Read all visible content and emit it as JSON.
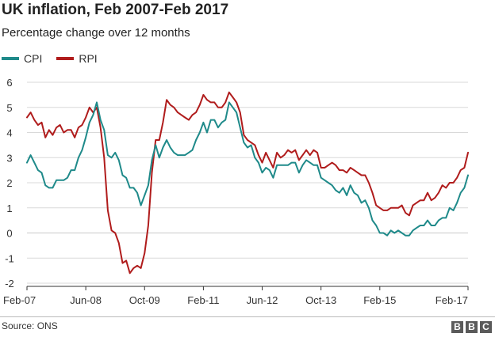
{
  "header": {
    "title": "UK inflation, Feb 2007-Feb 2017",
    "subtitle": "Percentage change over 12 months"
  },
  "footer": {
    "source": "Source: ONS",
    "logo_letters": [
      "B",
      "B",
      "C"
    ]
  },
  "colors": {
    "cpi": "#1f8a8a",
    "rpi": "#b01c1c",
    "grid": "#d9d9d9",
    "axis": "#333333"
  },
  "chart_data": {
    "type": "line",
    "title": "UK inflation, Feb 2007-Feb 2017",
    "subtitle": "Percentage change over 12 months",
    "xlabel": "",
    "ylabel": "",
    "x_start": "2007-02",
    "x_end": "2017-02",
    "ylim": [
      -2,
      6
    ],
    "yticks": [
      6,
      5,
      4,
      3,
      2,
      1,
      0,
      -1,
      -2
    ],
    "xticks": [
      {
        "label": "Feb-07",
        "date": "2007-02"
      },
      {
        "label": "Jun-08",
        "date": "2008-06"
      },
      {
        "label": "Oct-09",
        "date": "2009-10"
      },
      {
        "label": "Feb-11",
        "date": "2011-02"
      },
      {
        "label": "Jun-12",
        "date": "2012-06"
      },
      {
        "label": "Oct-13",
        "date": "2013-10"
      },
      {
        "label": "Feb-15",
        "date": "2015-02"
      },
      {
        "label": "Feb-17",
        "date": "2017-02"
      }
    ],
    "grid": true,
    "legend_position": "top-left",
    "series": [
      {
        "name": "CPI",
        "color": "#1f8a8a",
        "points": [
          [
            "2007-02",
            2.8
          ],
          [
            "2007-03",
            3.1
          ],
          [
            "2007-04",
            2.8
          ],
          [
            "2007-05",
            2.5
          ],
          [
            "2007-06",
            2.4
          ],
          [
            "2007-07",
            1.9
          ],
          [
            "2007-08",
            1.8
          ],
          [
            "2007-09",
            1.8
          ],
          [
            "2007-10",
            2.1
          ],
          [
            "2007-11",
            2.1
          ],
          [
            "2007-12",
            2.1
          ],
          [
            "2008-01",
            2.2
          ],
          [
            "2008-02",
            2.5
          ],
          [
            "2008-03",
            2.5
          ],
          [
            "2008-04",
            3.0
          ],
          [
            "2008-05",
            3.3
          ],
          [
            "2008-06",
            3.8
          ],
          [
            "2008-07",
            4.4
          ],
          [
            "2008-08",
            4.7
          ],
          [
            "2008-09",
            5.2
          ],
          [
            "2008-10",
            4.5
          ],
          [
            "2008-11",
            4.1
          ],
          [
            "2008-12",
            3.1
          ],
          [
            "2009-01",
            3.0
          ],
          [
            "2009-02",
            3.2
          ],
          [
            "2009-03",
            2.9
          ],
          [
            "2009-04",
            2.3
          ],
          [
            "2009-05",
            2.2
          ],
          [
            "2009-06",
            1.8
          ],
          [
            "2009-07",
            1.8
          ],
          [
            "2009-08",
            1.6
          ],
          [
            "2009-09",
            1.1
          ],
          [
            "2009-10",
            1.5
          ],
          [
            "2009-11",
            1.9
          ],
          [
            "2009-12",
            2.9
          ],
          [
            "2010-01",
            3.5
          ],
          [
            "2010-02",
            3.0
          ],
          [
            "2010-03",
            3.4
          ],
          [
            "2010-04",
            3.7
          ],
          [
            "2010-05",
            3.4
          ],
          [
            "2010-06",
            3.2
          ],
          [
            "2010-07",
            3.1
          ],
          [
            "2010-08",
            3.1
          ],
          [
            "2010-09",
            3.1
          ],
          [
            "2010-10",
            3.2
          ],
          [
            "2010-11",
            3.3
          ],
          [
            "2010-12",
            3.7
          ],
          [
            "2011-01",
            4.0
          ],
          [
            "2011-02",
            4.4
          ],
          [
            "2011-03",
            4.0
          ],
          [
            "2011-04",
            4.5
          ],
          [
            "2011-05",
            4.5
          ],
          [
            "2011-06",
            4.2
          ],
          [
            "2011-07",
            4.4
          ],
          [
            "2011-08",
            4.5
          ],
          [
            "2011-09",
            5.2
          ],
          [
            "2011-10",
            5.0
          ],
          [
            "2011-11",
            4.8
          ],
          [
            "2011-12",
            4.2
          ],
          [
            "2012-01",
            3.6
          ],
          [
            "2012-02",
            3.4
          ],
          [
            "2012-03",
            3.5
          ],
          [
            "2012-04",
            3.0
          ],
          [
            "2012-05",
            2.8
          ],
          [
            "2012-06",
            2.4
          ],
          [
            "2012-07",
            2.6
          ],
          [
            "2012-08",
            2.5
          ],
          [
            "2012-09",
            2.2
          ],
          [
            "2012-10",
            2.7
          ],
          [
            "2012-11",
            2.7
          ],
          [
            "2012-12",
            2.7
          ],
          [
            "2013-01",
            2.7
          ],
          [
            "2013-02",
            2.8
          ],
          [
            "2013-03",
            2.8
          ],
          [
            "2013-04",
            2.4
          ],
          [
            "2013-05",
            2.7
          ],
          [
            "2013-06",
            2.9
          ],
          [
            "2013-07",
            2.8
          ],
          [
            "2013-08",
            2.7
          ],
          [
            "2013-09",
            2.7
          ],
          [
            "2013-10",
            2.2
          ],
          [
            "2013-11",
            2.1
          ],
          [
            "2013-12",
            2.0
          ],
          [
            "2014-01",
            1.9
          ],
          [
            "2014-02",
            1.7
          ],
          [
            "2014-03",
            1.6
          ],
          [
            "2014-04",
            1.8
          ],
          [
            "2014-05",
            1.5
          ],
          [
            "2014-06",
            1.9
          ],
          [
            "2014-07",
            1.6
          ],
          [
            "2014-08",
            1.5
          ],
          [
            "2014-09",
            1.2
          ],
          [
            "2014-10",
            1.3
          ],
          [
            "2014-11",
            1.0
          ],
          [
            "2014-12",
            0.5
          ],
          [
            "2015-01",
            0.3
          ],
          [
            "2015-02",
            0.0
          ],
          [
            "2015-03",
            0.0
          ],
          [
            "2015-04",
            -0.1
          ],
          [
            "2015-05",
            0.1
          ],
          [
            "2015-06",
            0.0
          ],
          [
            "2015-07",
            0.1
          ],
          [
            "2015-08",
            0.0
          ],
          [
            "2015-09",
            -0.1
          ],
          [
            "2015-10",
            -0.1
          ],
          [
            "2015-11",
            0.1
          ],
          [
            "2015-12",
            0.2
          ],
          [
            "2016-01",
            0.3
          ],
          [
            "2016-02",
            0.3
          ],
          [
            "2016-03",
            0.5
          ],
          [
            "2016-04",
            0.3
          ],
          [
            "2016-05",
            0.3
          ],
          [
            "2016-06",
            0.5
          ],
          [
            "2016-07",
            0.6
          ],
          [
            "2016-08",
            0.6
          ],
          [
            "2016-09",
            1.0
          ],
          [
            "2016-10",
            0.9
          ],
          [
            "2016-11",
            1.2
          ],
          [
            "2016-12",
            1.6
          ],
          [
            "2017-01",
            1.8
          ],
          [
            "2017-02",
            2.3
          ]
        ]
      },
      {
        "name": "RPI",
        "color": "#b01c1c",
        "points": [
          [
            "2007-02",
            4.6
          ],
          [
            "2007-03",
            4.8
          ],
          [
            "2007-04",
            4.5
          ],
          [
            "2007-05",
            4.3
          ],
          [
            "2007-06",
            4.4
          ],
          [
            "2007-07",
            3.8
          ],
          [
            "2007-08",
            4.1
          ],
          [
            "2007-09",
            3.9
          ],
          [
            "2007-10",
            4.2
          ],
          [
            "2007-11",
            4.3
          ],
          [
            "2007-12",
            4.0
          ],
          [
            "2008-01",
            4.1
          ],
          [
            "2008-02",
            4.1
          ],
          [
            "2008-03",
            3.8
          ],
          [
            "2008-04",
            4.2
          ],
          [
            "2008-05",
            4.3
          ],
          [
            "2008-06",
            4.6
          ],
          [
            "2008-07",
            5.0
          ],
          [
            "2008-08",
            4.8
          ],
          [
            "2008-09",
            5.0
          ],
          [
            "2008-10",
            4.2
          ],
          [
            "2008-11",
            3.0
          ],
          [
            "2008-12",
            0.9
          ],
          [
            "2009-01",
            0.1
          ],
          [
            "2009-02",
            0.0
          ],
          [
            "2009-03",
            -0.4
          ],
          [
            "2009-04",
            -1.2
          ],
          [
            "2009-05",
            -1.1
          ],
          [
            "2009-06",
            -1.6
          ],
          [
            "2009-07",
            -1.4
          ],
          [
            "2009-08",
            -1.3
          ],
          [
            "2009-09",
            -1.4
          ],
          [
            "2009-10",
            -0.8
          ],
          [
            "2009-11",
            0.3
          ],
          [
            "2009-12",
            2.4
          ],
          [
            "2010-01",
            3.7
          ],
          [
            "2010-02",
            3.7
          ],
          [
            "2010-03",
            4.4
          ],
          [
            "2010-04",
            5.3
          ],
          [
            "2010-05",
            5.1
          ],
          [
            "2010-06",
            5.0
          ],
          [
            "2010-07",
            4.8
          ],
          [
            "2010-08",
            4.7
          ],
          [
            "2010-09",
            4.6
          ],
          [
            "2010-10",
            4.5
          ],
          [
            "2010-11",
            4.7
          ],
          [
            "2010-12",
            4.8
          ],
          [
            "2011-01",
            5.1
          ],
          [
            "2011-02",
            5.5
          ],
          [
            "2011-03",
            5.3
          ],
          [
            "2011-04",
            5.2
          ],
          [
            "2011-05",
            5.2
          ],
          [
            "2011-06",
            5.0
          ],
          [
            "2011-07",
            5.0
          ],
          [
            "2011-08",
            5.2
          ],
          [
            "2011-09",
            5.6
          ],
          [
            "2011-10",
            5.4
          ],
          [
            "2011-11",
            5.2
          ],
          [
            "2011-12",
            4.8
          ],
          [
            "2012-01",
            3.9
          ],
          [
            "2012-02",
            3.7
          ],
          [
            "2012-03",
            3.6
          ],
          [
            "2012-04",
            3.5
          ],
          [
            "2012-05",
            3.1
          ],
          [
            "2012-06",
            2.8
          ],
          [
            "2012-07",
            3.2
          ],
          [
            "2012-08",
            2.9
          ],
          [
            "2012-09",
            2.6
          ],
          [
            "2012-10",
            3.2
          ],
          [
            "2012-11",
            3.0
          ],
          [
            "2012-12",
            3.1
          ],
          [
            "2013-01",
            3.3
          ],
          [
            "2013-02",
            3.2
          ],
          [
            "2013-03",
            3.3
          ],
          [
            "2013-04",
            2.9
          ],
          [
            "2013-05",
            3.1
          ],
          [
            "2013-06",
            3.3
          ],
          [
            "2013-07",
            3.1
          ],
          [
            "2013-08",
            3.3
          ],
          [
            "2013-09",
            3.2
          ],
          [
            "2013-10",
            2.6
          ],
          [
            "2013-11",
            2.6
          ],
          [
            "2013-12",
            2.7
          ],
          [
            "2014-01",
            2.8
          ],
          [
            "2014-02",
            2.7
          ],
          [
            "2014-03",
            2.5
          ],
          [
            "2014-04",
            2.5
          ],
          [
            "2014-05",
            2.4
          ],
          [
            "2014-06",
            2.6
          ],
          [
            "2014-07",
            2.5
          ],
          [
            "2014-08",
            2.4
          ],
          [
            "2014-09",
            2.3
          ],
          [
            "2014-10",
            2.3
          ],
          [
            "2014-11",
            2.0
          ],
          [
            "2014-12",
            1.6
          ],
          [
            "2015-01",
            1.1
          ],
          [
            "2015-02",
            1.0
          ],
          [
            "2015-03",
            0.9
          ],
          [
            "2015-04",
            0.9
          ],
          [
            "2015-05",
            1.0
          ],
          [
            "2015-06",
            1.0
          ],
          [
            "2015-07",
            1.0
          ],
          [
            "2015-08",
            1.1
          ],
          [
            "2015-09",
            0.8
          ],
          [
            "2015-10",
            0.7
          ],
          [
            "2015-11",
            1.1
          ],
          [
            "2015-12",
            1.2
          ],
          [
            "2016-01",
            1.3
          ],
          [
            "2016-02",
            1.3
          ],
          [
            "2016-03",
            1.6
          ],
          [
            "2016-04",
            1.3
          ],
          [
            "2016-05",
            1.4
          ],
          [
            "2016-06",
            1.6
          ],
          [
            "2016-07",
            1.9
          ],
          [
            "2016-08",
            1.8
          ],
          [
            "2016-09",
            2.0
          ],
          [
            "2016-10",
            2.0
          ],
          [
            "2016-11",
            2.2
          ],
          [
            "2016-12",
            2.5
          ],
          [
            "2017-01",
            2.6
          ],
          [
            "2017-02",
            3.2
          ]
        ]
      }
    ]
  }
}
